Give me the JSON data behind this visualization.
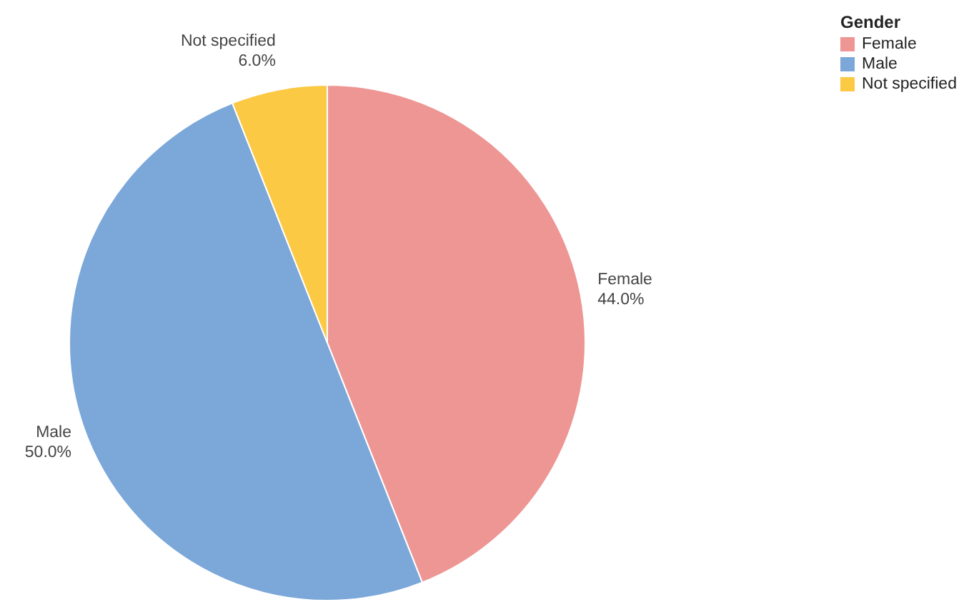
{
  "chart_data": {
    "type": "pie",
    "legend_title": "Gender",
    "legend": "top right",
    "categories": [
      "Female",
      "Male",
      "Not specified"
    ],
    "values": [
      44,
      50,
      6
    ],
    "value_labels": [
      "44.0%",
      "50.0%",
      "6.0%"
    ],
    "colors": [
      "#ee9694",
      "#7ba7d9",
      "#fcc945"
    ]
  }
}
